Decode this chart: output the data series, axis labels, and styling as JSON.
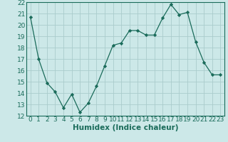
{
  "x": [
    0,
    1,
    2,
    3,
    4,
    5,
    6,
    7,
    8,
    9,
    10,
    11,
    12,
    13,
    14,
    15,
    16,
    17,
    18,
    19,
    20,
    21,
    22,
    23
  ],
  "y": [
    20.7,
    17.0,
    14.9,
    14.1,
    12.7,
    13.9,
    12.3,
    13.1,
    14.6,
    16.4,
    18.2,
    18.4,
    19.5,
    19.5,
    19.1,
    19.1,
    20.6,
    21.8,
    20.9,
    21.1,
    18.5,
    16.7,
    15.6,
    15.6
  ],
  "line_color": "#1a6b5a",
  "marker": "D",
  "marker_size": 2.2,
  "bg_color": "#cce8e8",
  "grid_color": "#aacccc",
  "tick_color": "#1a6b5a",
  "xlabel": "Humidex (Indice chaleur)",
  "xlim": [
    -0.5,
    23.5
  ],
  "ylim": [
    12,
    22
  ],
  "yticks": [
    12,
    13,
    14,
    15,
    16,
    17,
    18,
    19,
    20,
    21,
    22
  ],
  "xticks": [
    0,
    1,
    2,
    3,
    4,
    5,
    6,
    7,
    8,
    9,
    10,
    11,
    12,
    13,
    14,
    15,
    16,
    17,
    18,
    19,
    20,
    21,
    22,
    23
  ],
  "font_color": "#1a6b5a",
  "font_size": 6.5,
  "xlabel_fontsize": 7.5
}
